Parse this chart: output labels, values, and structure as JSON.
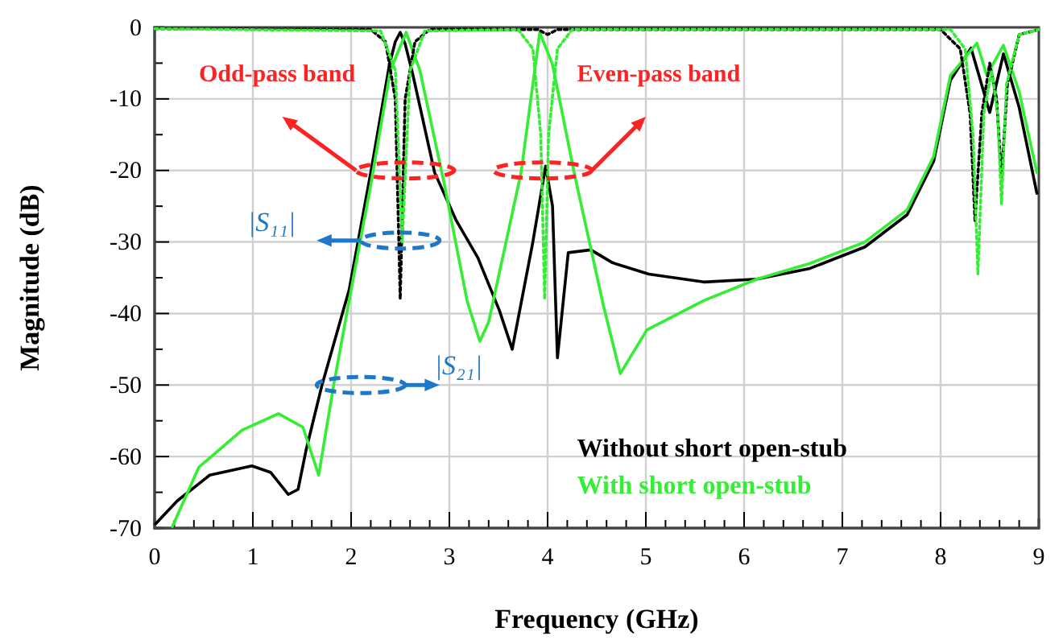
{
  "chart_data": {
    "type": "line",
    "xlabel": "Frequency (GHz)",
    "ylabel": "Magnitude (dB)",
    "xlim": [
      0,
      9
    ],
    "ylim": [
      -70,
      0
    ],
    "xticks": [
      0,
      {
        "value": 0.2,
        "label": null
      },
      {
        "value": 0.4,
        "label": null
      },
      {
        "value": 0.6,
        "label": null
      },
      {
        "value": 0.8,
        "label": null
      },
      1,
      {
        "value": 1.2,
        "label": null
      },
      {
        "value": 1.4,
        "label": null
      },
      {
        "value": 1.6,
        "label": null
      },
      {
        "value": 1.8,
        "label": null
      },
      2,
      {
        "value": 2.2,
        "label": null
      },
      {
        "value": 2.4,
        "label": null
      },
      {
        "value": 2.6,
        "label": null
      },
      {
        "value": 2.8,
        "label": null
      },
      3,
      {
        "value": 3.2,
        "label": null
      },
      {
        "value": 3.4,
        "label": null
      },
      {
        "value": 3.6,
        "label": null
      },
      {
        "value": 3.8,
        "label": null
      },
      4,
      {
        "value": 4.2,
        "label": null
      },
      {
        "value": 4.4,
        "label": null
      },
      {
        "value": 4.6,
        "label": null
      },
      {
        "value": 4.8,
        "label": null
      },
      5,
      {
        "value": 5.2,
        "label": null
      },
      {
        "value": 5.4,
        "label": null
      },
      {
        "value": 5.6,
        "label": null
      },
      {
        "value": 5.8,
        "label": null
      },
      6,
      {
        "value": 6.2,
        "label": null
      },
      {
        "value": 6.4,
        "label": null
      },
      {
        "value": 6.6,
        "label": null
      },
      {
        "value": 6.8,
        "label": null
      },
      7,
      {
        "value": 7.2,
        "label": null
      },
      {
        "value": 7.4,
        "label": null
      },
      {
        "value": 7.6,
        "label": null
      },
      {
        "value": 7.8,
        "label": null
      },
      8,
      {
        "value": 8.2,
        "label": null
      },
      {
        "value": 8.4,
        "label": null
      },
      {
        "value": 8.6,
        "label": null
      },
      {
        "value": 8.8,
        "label": null
      },
      9
    ],
    "yticks": [
      -70,
      {
        "value": -65,
        "label": null
      },
      -60,
      {
        "value": -55,
        "label": null
      },
      -50,
      {
        "value": -45,
        "label": null
      },
      -40,
      {
        "value": -35,
        "label": null
      },
      -30,
      {
        "value": -25,
        "label": null
      },
      -20,
      {
        "value": -15,
        "label": null
      },
      -10,
      {
        "value": -5,
        "label": null
      },
      0
    ],
    "grid": true,
    "legend": "bottom right",
    "annotations": [
      "Odd-pass band",
      "Even-pass band",
      "|S₁₁|",
      "|S₂₁|"
    ],
    "series": [
      {
        "name": "Without short open-stub",
        "color": "#000000",
        "line_style": "solid",
        "x": [
          0.01,
          0.23,
          0.56,
          0.99,
          1.18,
          1.36,
          1.46,
          1.54,
          1.7,
          1.98,
          2.2,
          2.39,
          2.45,
          2.5,
          2.55,
          2.63,
          2.85,
          3.07,
          3.29,
          3.51,
          3.64,
          3.85,
          3.98,
          4.05,
          4.1,
          4.21,
          4.44,
          4.66,
          5.03,
          5.59,
          6.13,
          6.67,
          7.23,
          7.66,
          7.93,
          8.1,
          8.31,
          8.5,
          8.64,
          8.8,
          8.98
        ],
        "values": [
          -69.4,
          -66.2,
          -62.6,
          -61.3,
          -62.2,
          -65.3,
          -64.6,
          -59.2,
          -50.2,
          -36.7,
          -20.3,
          -5.2,
          -2,
          -0.7,
          -2.3,
          -6.7,
          -20.3,
          -27,
          -32.2,
          -39.6,
          -45,
          -30,
          -19.4,
          -25,
          -46.2,
          -31.5,
          -31.1,
          -32.9,
          -34.5,
          -35.6,
          -35.2,
          -33.7,
          -30.7,
          -26.2,
          -18.7,
          -7.4,
          -2.9,
          -11.9,
          -3.7,
          -11.2,
          -23.2
        ]
      },
      {
        "name": "With short open-stub",
        "color": "#33ee33",
        "line_style": "solid",
        "x": [
          0.18,
          0.45,
          0.89,
          1.26,
          1.51,
          1.67,
          1.82,
          2.0,
          2.2,
          2.4,
          2.56,
          2.7,
          2.95,
          3.18,
          3.31,
          3.4,
          3.73,
          3.92,
          4.05,
          4.27,
          4.57,
          4.74,
          5.01,
          5.59,
          6.13,
          6.67,
          7.23,
          7.66,
          7.93,
          8.1,
          8.37,
          8.47,
          8.64,
          8.8,
          8.98
        ],
        "values": [
          -69.8,
          -61.5,
          -56.3,
          -54,
          -55.9,
          -62.6,
          -50.2,
          -36.7,
          -22,
          -6,
          -0.7,
          -6,
          -22,
          -38.2,
          -43.9,
          -41.2,
          -20.3,
          -0.7,
          -5.2,
          -20.3,
          -39,
          -48.4,
          -42.3,
          -38.2,
          -35.2,
          -33,
          -30,
          -25.5,
          -18,
          -6.7,
          -2.2,
          -6.7,
          -2.5,
          -9,
          -20.3
        ]
      },
      {
        "color": "#000000",
        "line_style": "dotted",
        "x": [
          0,
          2.2,
          2.35,
          2.45,
          2.5,
          2.55,
          2.65,
          2.8,
          3.9,
          4.0,
          4.1,
          8.0,
          8.2,
          8.3,
          8.35,
          8.42,
          8.5,
          8.57,
          8.62,
          8.68,
          8.8,
          9
        ],
        "values": [
          -0.2,
          -0.3,
          -2,
          -10,
          -38,
          -10,
          -2,
          -0.3,
          -0.3,
          -1,
          -0.3,
          -0.3,
          -3,
          -12,
          -27,
          -12,
          -5,
          -10,
          -21,
          -8,
          -1,
          -0.3
        ]
      },
      {
        "color": "#33ee33",
        "line_style": "dotted",
        "x": [
          0,
          2.3,
          2.45,
          2.52,
          2.6,
          2.75,
          3.7,
          3.85,
          3.93,
          3.97,
          4.01,
          4.1,
          4.25,
          8.1,
          8.25,
          8.33,
          8.38,
          8.44,
          8.52,
          8.58,
          8.62,
          8.67,
          8.8,
          9
        ],
        "values": [
          -0.2,
          -0.5,
          -6,
          -30,
          -6,
          -0.5,
          -0.3,
          -3,
          -15,
          -38,
          -15,
          -3,
          -0.3,
          -0.3,
          -3,
          -15,
          -34.5,
          -12,
          -6,
          -12,
          -24.7,
          -8,
          -1,
          -0.3
        ]
      }
    ]
  }
}
